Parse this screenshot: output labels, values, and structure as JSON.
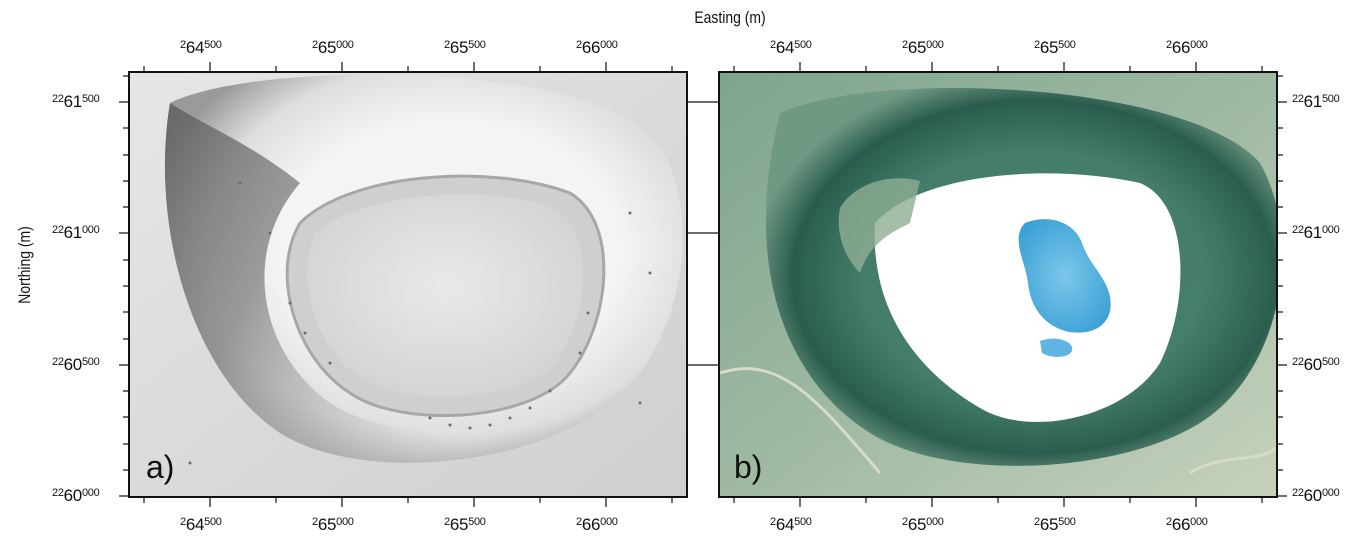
{
  "figure": {
    "x_axis_title": "Easting (m)",
    "y_axis_title": "Northing (m)",
    "easting_ticks": [
      {
        "prefix": "2",
        "major": "64",
        "minor": "500"
      },
      {
        "prefix": "2",
        "major": "65",
        "minor": "000"
      },
      {
        "prefix": "2",
        "major": "65",
        "minor": "500"
      },
      {
        "prefix": "2",
        "major": "66",
        "minor": "000"
      }
    ],
    "northing_ticks": [
      {
        "prefix": "22",
        "major": "61",
        "minor": "500"
      },
      {
        "prefix": "22",
        "major": "61",
        "minor": "000"
      },
      {
        "prefix": "22",
        "major": "60",
        "minor": "500"
      },
      {
        "prefix": "22",
        "major": "60",
        "minor": "000"
      }
    ],
    "panels": [
      {
        "label": "a)",
        "kind": "shaded-relief-dem"
      },
      {
        "label": "b)",
        "kind": "aerial-photo"
      }
    ]
  },
  "colors": {
    "frame": "#111111",
    "relief_light": "#f2f2f2",
    "relief_shadow": "#6b6b6b",
    "vegetation": "#2f6a5a",
    "vegetation_light": "#9fb9a3",
    "crater_floor": "#ffffff",
    "lake": "#3aa9dc"
  }
}
